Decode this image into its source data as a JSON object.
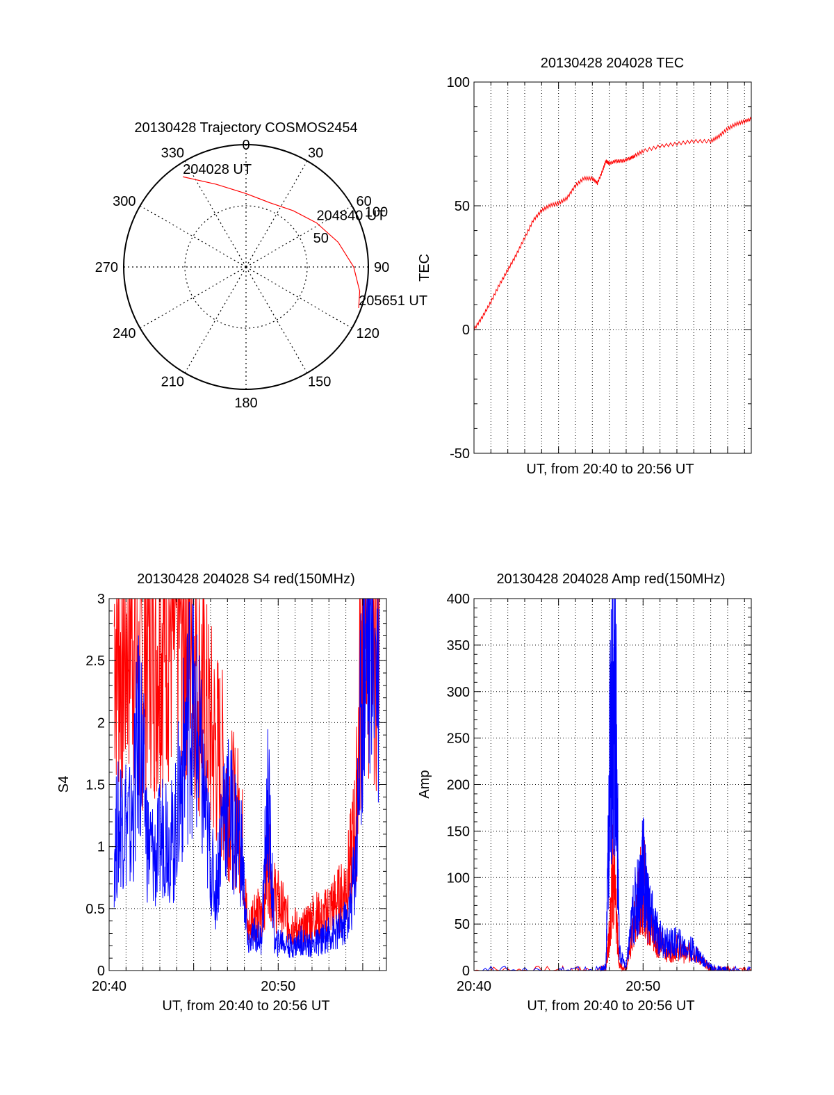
{
  "colors": {
    "red": "#ff0000",
    "blue": "#0000ff",
    "axis": "#000000"
  },
  "chart_data": [
    {
      "id": "trajectory",
      "type": "scatter",
      "projection": "polar",
      "title": "20130428 Trajectory COSMOS2454",
      "azimuth_labels": [
        "0",
        "30",
        "60",
        "90",
        "120",
        "150",
        "180",
        "210",
        "240",
        "270",
        "300",
        "330"
      ],
      "radial_labels": [
        "50",
        "100"
      ],
      "rlim": [
        0,
        100
      ],
      "grid": true,
      "series": [
        {
          "color": "#ff0000",
          "points": [
            {
              "az": 325,
              "r": 90
            },
            {
              "az": 340,
              "r": 72
            },
            {
              "az": 0,
              "r": 60
            },
            {
              "az": 20,
              "r": 56
            },
            {
              "az": 40,
              "r": 60
            },
            {
              "az": 58,
              "r": 68
            },
            {
              "az": 75,
              "r": 78
            },
            {
              "az": 90,
              "r": 88
            },
            {
              "az": 102,
              "r": 95
            },
            {
              "az": 110,
              "r": 98
            }
          ]
        }
      ],
      "annotations": [
        {
          "text": "204028 UT",
          "az": 325,
          "r": 90
        },
        {
          "text": "204840 UT",
          "az": 58,
          "r": 68
        },
        {
          "text": "205651 UT",
          "az": 110,
          "r": 98
        }
      ]
    },
    {
      "id": "tec",
      "type": "line",
      "title": "20130428 204028 TEC",
      "xlabel": "UT, from 20:40 to 20:56 UT",
      "ylabel": "TEC",
      "xlim": [
        0,
        16.4
      ],
      "ylim": [
        -50,
        100
      ],
      "yticks": [
        "-50",
        "0",
        "50",
        "100"
      ],
      "grid": true,
      "series": [
        {
          "color": "#ff0000",
          "x": [
            0.0,
            0.5,
            1.0,
            1.5,
            2.0,
            2.5,
            3.0,
            3.5,
            4.0,
            4.5,
            5.0,
            5.5,
            6.0,
            6.5,
            7.0,
            7.3,
            7.6,
            7.8,
            8.0,
            8.4,
            8.8,
            9.2,
            9.5,
            10.0,
            11.0,
            12.0,
            13.0,
            14.0,
            14.5,
            15.0,
            15.5,
            16.0,
            16.4
          ],
          "y": [
            0,
            5,
            11,
            18,
            24,
            30,
            37,
            44,
            48,
            50,
            51,
            53,
            58,
            61,
            61,
            59,
            64,
            68,
            67,
            68,
            68,
            69,
            70,
            72,
            74,
            75,
            76,
            76,
            78,
            81,
            83,
            84,
            85
          ]
        }
      ]
    },
    {
      "id": "s4",
      "type": "line",
      "title": "20130428 204028 S4 red(150MHz)",
      "xlabel": "UT, from 20:40 to 20:56 UT",
      "ylabel": "S4",
      "xlim": [
        0,
        16.4
      ],
      "ylim": [
        0,
        3
      ],
      "xtick_labels": [
        {
          "x": 0,
          "label": "20:40"
        },
        {
          "x": 10,
          "label": "20:50"
        }
      ],
      "yticks": [
        "0",
        "0.5",
        "1",
        "1.5",
        "2",
        "2.5",
        "3"
      ],
      "grid": true,
      "series": [
        {
          "color": "#ff0000",
          "x": [
            0.3,
            0.8,
            1.3,
            1.8,
            2.3,
            2.8,
            3.3,
            3.8,
            4.3,
            4.8,
            5.3,
            5.8,
            6.3,
            6.8,
            7.3,
            7.8,
            8.2,
            8.6,
            9.0,
            9.4,
            9.8,
            10.2,
            10.6,
            11.0,
            11.4,
            11.8,
            12.2,
            12.6,
            13.0,
            13.4,
            13.8,
            14.2,
            14.6,
            15.0,
            15.4,
            16.0
          ],
          "y": [
            2.8,
            2.5,
            3.0,
            2.2,
            2.9,
            2.6,
            3.0,
            2.7,
            3.0,
            2.9,
            2.4,
            2.0,
            1.8,
            1.6,
            1.3,
            1.2,
            0.3,
            0.5,
            0.4,
            0.9,
            0.6,
            0.5,
            0.4,
            0.35,
            0.3,
            0.4,
            0.45,
            0.4,
            0.5,
            0.55,
            0.6,
            0.8,
            1.2,
            2.9,
            3.0,
            2.8
          ]
        },
        {
          "color": "#0000ff",
          "x": [
            0.3,
            0.8,
            1.3,
            1.8,
            2.3,
            2.8,
            3.3,
            3.8,
            4.3,
            4.8,
            5.3,
            5.8,
            6.3,
            6.8,
            7.3,
            7.8,
            8.2,
            8.6,
            9.0,
            9.4,
            9.8,
            10.2,
            10.6,
            11.0,
            11.4,
            11.8,
            12.2,
            12.6,
            13.0,
            13.4,
            13.8,
            14.2,
            14.6,
            15.0,
            15.4,
            16.0
          ],
          "y": [
            1.0,
            1.3,
            1.1,
            2.0,
            1.0,
            0.9,
            1.2,
            1.0,
            1.6,
            2.2,
            1.8,
            1.1,
            0.6,
            1.4,
            1.2,
            1.0,
            0.2,
            0.3,
            0.25,
            1.4,
            0.2,
            0.25,
            0.2,
            0.2,
            0.25,
            0.2,
            0.22,
            0.25,
            0.3,
            0.3,
            0.35,
            0.45,
            0.9,
            2.5,
            2.8,
            2.6
          ]
        }
      ]
    },
    {
      "id": "amp",
      "type": "line",
      "title": "20130428 204028 Amp red(150MHz)",
      "xlabel": "UT, from 20:40 to 20:56 UT",
      "ylabel": "Amp",
      "xlim": [
        0,
        16.4
      ],
      "ylim": [
        0,
        400
      ],
      "xtick_labels": [
        {
          "x": 0,
          "label": "20:40"
        },
        {
          "x": 10,
          "label": "20:50"
        }
      ],
      "yticks": [
        "0",
        "50",
        "100",
        "150",
        "200",
        "250",
        "300",
        "350",
        "400"
      ],
      "grid": true,
      "series": [
        {
          "color": "#ff0000",
          "x": [
            0.0,
            5.0,
            7.5,
            7.8,
            8.0,
            8.2,
            8.4,
            8.6,
            9.0,
            9.4,
            9.8,
            10.0,
            10.3,
            10.6,
            11.0,
            11.5,
            12.0,
            12.5,
            13.0,
            13.5,
            14.0,
            14.5,
            15.0,
            16.4
          ],
          "y": [
            0,
            0,
            0,
            2,
            40,
            110,
            60,
            5,
            2,
            40,
            80,
            100,
            60,
            40,
            30,
            20,
            25,
            18,
            20,
            10,
            2,
            0,
            0,
            0
          ]
        },
        {
          "color": "#0000ff",
          "x": [
            0.0,
            5.0,
            7.5,
            7.8,
            8.0,
            8.2,
            8.4,
            8.6,
            9.0,
            9.4,
            9.8,
            10.0,
            10.3,
            10.6,
            11.0,
            11.5,
            12.0,
            12.5,
            13.0,
            13.5,
            14.0,
            14.5,
            15.0,
            16.4
          ],
          "y": [
            0,
            0,
            0,
            3,
            180,
            330,
            250,
            20,
            3,
            60,
            90,
            110,
            70,
            50,
            35,
            28,
            30,
            25,
            22,
            12,
            3,
            0,
            0,
            0
          ]
        }
      ]
    }
  ]
}
